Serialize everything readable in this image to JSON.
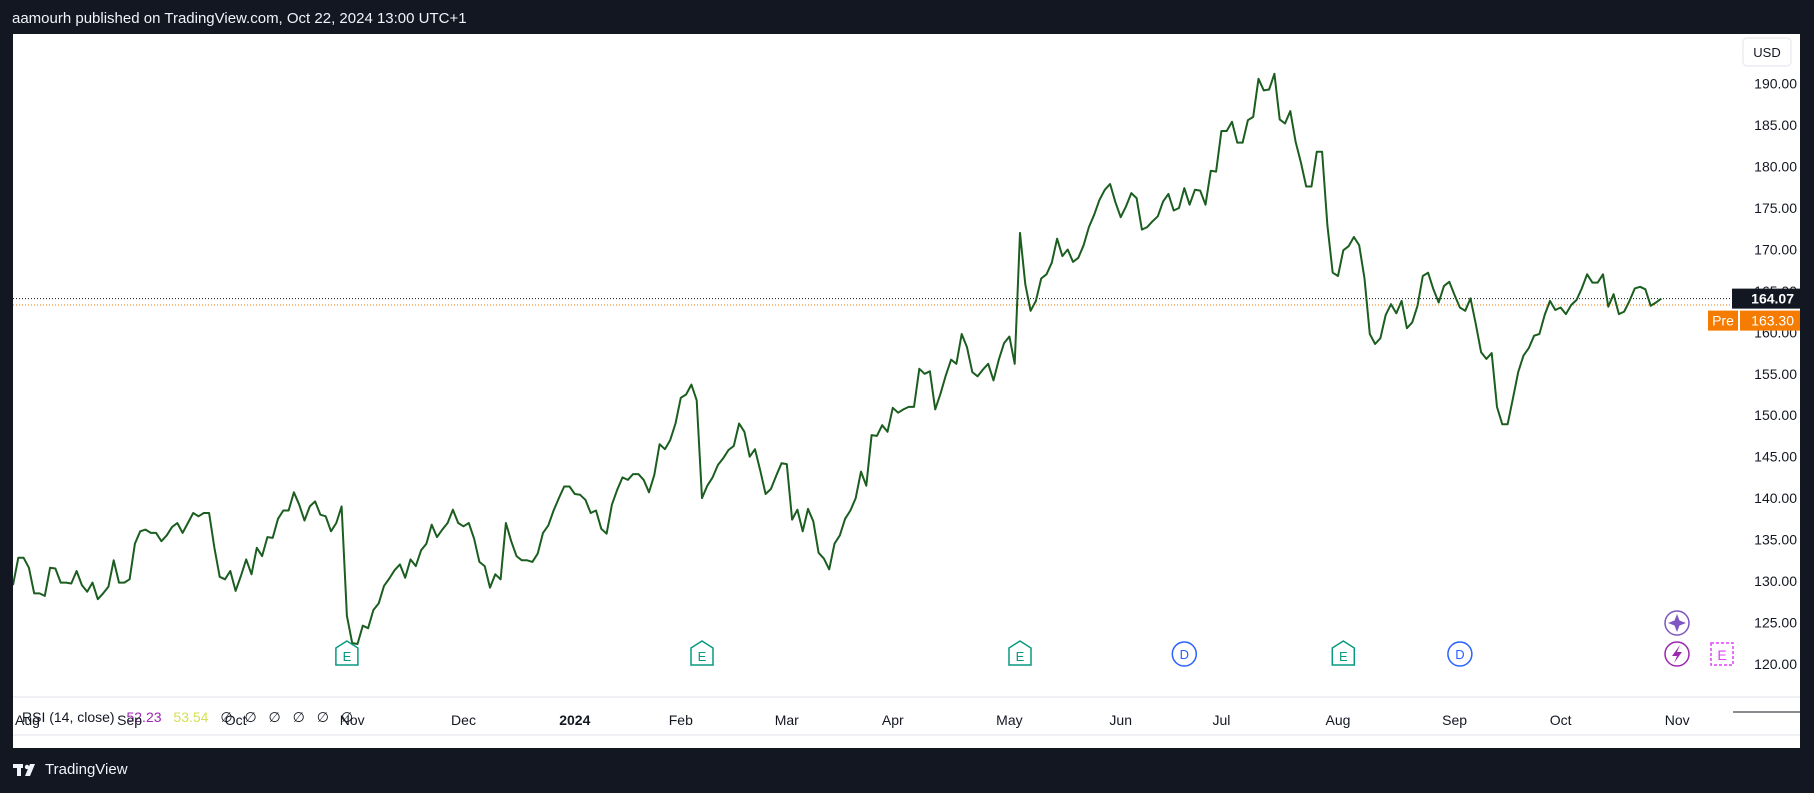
{
  "header": {
    "text": "aamourh published on TradingView.com, Oct 22, 2024 13:00 UTC+1"
  },
  "footer": {
    "brand": "TradingView"
  },
  "chart_data": {
    "type": "line",
    "currency": "USD",
    "line_color": "#1b5e20",
    "last_price": {
      "value": 164.07,
      "label": "164.07",
      "color": "#131722"
    },
    "pre_market": {
      "tag": "Pre",
      "value": 163.3,
      "label": "163.30",
      "color": "#f57c00"
    },
    "ylim": [
      116,
      196
    ],
    "y_ticks": [
      120,
      125,
      130,
      135,
      140,
      145,
      150,
      155,
      160,
      165,
      170,
      175,
      180,
      185,
      190
    ],
    "x_ticks": [
      {
        "label": "Aug",
        "i": 0
      },
      {
        "label": "Sep",
        "i": 22
      },
      {
        "label": "Oct",
        "i": 42
      },
      {
        "label": "Nov",
        "i": 64
      },
      {
        "label": "Dec",
        "i": 85
      },
      {
        "label": "2024",
        "i": 106,
        "bold": true
      },
      {
        "label": "Feb",
        "i": 126
      },
      {
        "label": "Mar",
        "i": 146
      },
      {
        "label": "Apr",
        "i": 166
      },
      {
        "label": "May",
        "i": 188
      },
      {
        "label": "Jun",
        "i": 209
      },
      {
        "label": "Jul",
        "i": 228
      },
      {
        "label": "Aug",
        "i": 250
      },
      {
        "label": "Sep",
        "i": 272
      },
      {
        "label": "Oct",
        "i": 292
      },
      {
        "label": "Nov",
        "i": 314
      }
    ],
    "values": [
      129.5,
      132.8,
      132.8,
      131.6,
      128.5,
      128.5,
      128.2,
      131.6,
      131.5,
      129.8,
      129.8,
      129.7,
      131.2,
      129.5,
      128.7,
      129.8,
      127.8,
      128.5,
      129.3,
      132.5,
      129.8,
      129.8,
      130.2,
      134.5,
      136.0,
      136.2,
      135.8,
      135.8,
      134.8,
      135.5,
      136.5,
      137.0,
      135.8,
      137.0,
      138.2,
      137.8,
      138.2,
      138.2,
      134.0,
      130.5,
      130.2,
      131.2,
      128.8,
      130.6,
      132.6,
      130.8,
      134.0,
      133.0,
      135.3,
      135.2,
      137.5,
      138.5,
      138.5,
      140.7,
      139.2,
      137.3,
      139.0,
      139.6,
      138.0,
      137.8,
      136.0,
      137.0,
      139.0,
      125.8,
      122.5,
      122.4,
      124.6,
      124.3,
      126.5,
      127.3,
      129.4,
      130.3,
      131.3,
      132.0,
      130.4,
      132.6,
      131.8,
      133.7,
      134.5,
      136.8,
      135.3,
      136.2,
      137.0,
      138.6,
      137.0,
      136.6,
      137.0,
      135.1,
      132.3,
      131.8,
      129.2,
      130.8,
      130.2,
      137.0,
      134.8,
      133.0,
      132.5,
      132.5,
      132.3,
      133.3,
      135.8,
      136.7,
      138.5,
      140.0,
      141.4,
      141.4,
      140.5,
      140.4,
      139.8,
      138.2,
      138.5,
      136.3,
      135.7,
      139.2,
      141.0,
      142.5,
      142.2,
      142.9,
      142.9,
      142.2,
      140.7,
      142.8,
      146.5,
      145.9,
      147.0,
      149.0,
      152.1,
      152.5,
      153.7,
      151.8,
      140.0,
      141.5,
      142.5,
      144.0,
      144.8,
      145.8,
      146.3,
      149.0,
      148.0,
      145.0,
      145.9,
      143.3,
      140.5,
      141.1,
      142.7,
      144.2,
      144.1,
      137.4,
      138.6,
      136.0,
      138.7,
      137.2,
      133.4,
      132.7,
      131.4,
      134.5,
      135.5,
      137.5,
      138.5,
      140.0,
      143.2,
      141.5,
      147.6,
      147.5,
      148.8,
      148.0,
      150.9,
      150.3,
      150.7,
      151.0,
      151.0,
      155.6,
      155.0,
      155.3,
      150.7,
      152.6,
      154.8,
      156.7,
      156.2,
      159.8,
      158.2,
      155.2,
      154.7,
      155.5,
      156.2,
      154.2,
      156.7,
      158.7,
      159.5,
      156.2,
      172.0,
      165.8,
      162.6,
      163.8,
      166.5,
      167.0,
      168.4,
      171.3,
      169.2,
      170.0,
      168.5,
      169.0,
      170.5,
      172.7,
      174.2,
      176.0,
      177.2,
      177.9,
      175.7,
      173.9,
      175.2,
      176.8,
      176.2,
      172.4,
      172.7,
      173.4,
      174.0,
      175.8,
      176.7,
      174.7,
      175.0,
      177.4,
      175.4,
      177.2,
      177.1,
      175.4,
      179.5,
      179.4,
      184.3,
      184.3,
      185.4,
      182.9,
      182.9,
      185.6,
      186.0,
      190.6,
      189.2,
      189.3,
      191.2,
      185.7,
      185.2,
      186.7,
      183.0,
      180.5,
      177.6,
      177.6,
      181.8,
      181.8,
      172.9,
      167.2,
      166.8,
      169.9,
      170.4,
      171.5,
      170.5,
      166.5,
      159.8,
      158.6,
      159.3,
      162.1,
      163.4,
      162.3,
      163.8,
      160.5,
      161.2,
      163.2,
      166.8,
      167.2,
      165.2,
      163.6,
      165.6,
      166.1,
      164.5,
      163.0,
      162.6,
      164.1,
      161.0,
      157.6,
      156.8,
      157.5,
      151.0,
      148.9,
      148.9,
      152.0,
      155.2,
      157.2,
      158.1,
      159.6,
      159.8,
      162.1,
      163.8,
      162.7,
      163.0,
      162.2,
      163.3,
      163.9,
      165.3,
      167.0,
      166.0,
      166.0,
      167.0,
      163.1,
      164.6,
      162.2,
      162.5,
      163.8,
      165.3,
      165.5,
      165.2,
      163.2,
      163.6,
      164.07
    ],
    "events": [
      {
        "type": "E",
        "i": 63
      },
      {
        "type": "E",
        "i": 130
      },
      {
        "type": "E",
        "i": 190
      },
      {
        "type": "D",
        "i": 221
      },
      {
        "type": "E",
        "i": 251
      },
      {
        "type": "D",
        "i": 273
      }
    ],
    "indicator": {
      "label": "RSI (14, close)",
      "value1": "52.23",
      "value2": "53.54",
      "value1_color": "#9c27b0",
      "value2_color": "#d4e157",
      "empty_values": [
        "∅",
        "∅",
        "∅",
        "∅",
        "∅",
        "∅"
      ]
    }
  }
}
